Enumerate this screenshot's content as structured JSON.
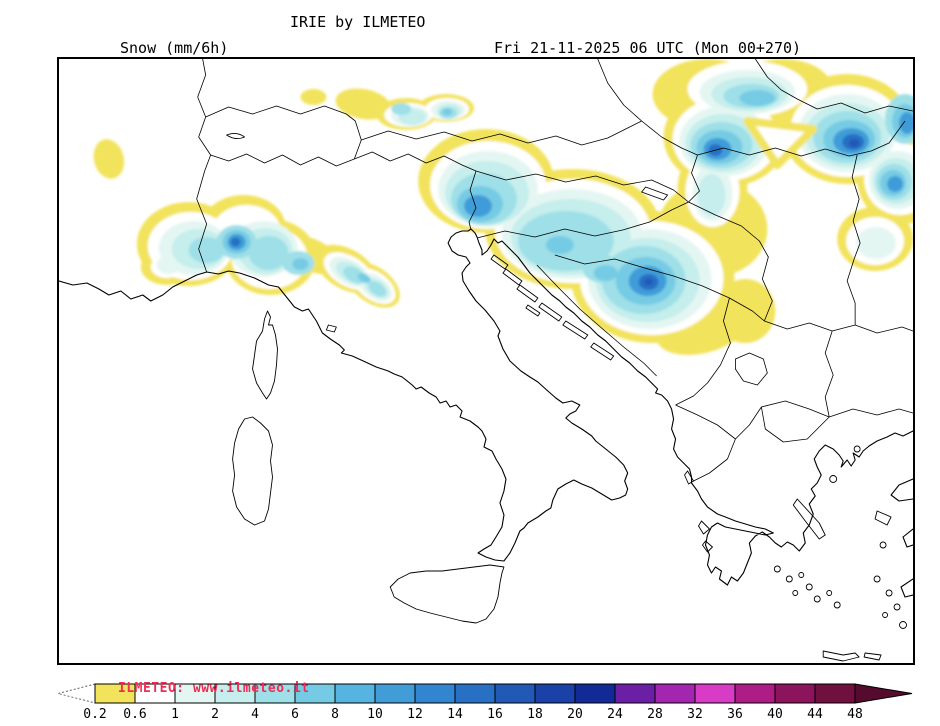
{
  "header": {
    "title": "IRIE by ILMETEO",
    "variable": "Snow (mm/6h)",
    "valid_time": "Fri 21-11-2025 06 UTC (Mon 00+270)"
  },
  "watermark": "ILMETEO: www.ilmeteo.it",
  "watermark_color": "#ef2c55",
  "colorbar": {
    "tick_labels": [
      "0.2",
      "0.6",
      "1",
      "2",
      "4",
      "6",
      "8",
      "10",
      "12",
      "14",
      "16",
      "18",
      "20",
      "24",
      "28",
      "32",
      "36",
      "40",
      "44",
      "48"
    ],
    "values": [
      0.2,
      0.6,
      1,
      2,
      4,
      6,
      8,
      10,
      12,
      14,
      16,
      18,
      20,
      24,
      28,
      32,
      36,
      40,
      44,
      48
    ],
    "unit": "mm/6h",
    "segment_colors": [
      "#f2e35c",
      "#ffffff",
      "#e4f6f2",
      "#c5eeec",
      "#9edfe8",
      "#76cbe4",
      "#57b3e0",
      "#419cd8",
      "#3286cf",
      "#2870c4",
      "#2159b7",
      "#1a41a8",
      "#122a96",
      "#6b1fa4",
      "#a226b0",
      "#d83cc6",
      "#ad1d85",
      "#8c145c",
      "#70103f"
    ],
    "arrow_left_color": "#ffffff",
    "arrow_right_color": "#560a2e"
  }
}
